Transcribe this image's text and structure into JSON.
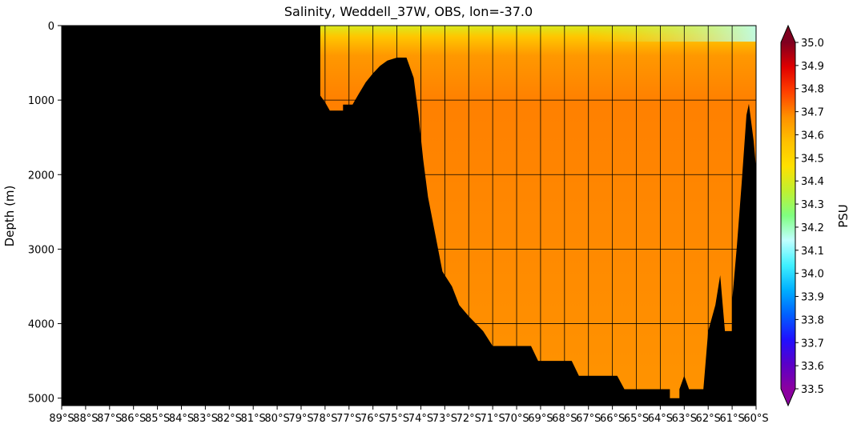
{
  "chart_data": {
    "type": "heatmap",
    "title": "Salinity, Weddell_37W, OBS, lon=-37.0",
    "ylabel": "Depth (m)",
    "xlabel": "",
    "x_range_lat": [
      -89,
      -60
    ],
    "ylim_depth_m": [
      0,
      5100
    ],
    "y_inverted": true,
    "y_ticks": [
      {
        "value": 0,
        "label": "0"
      },
      {
        "value": 1000,
        "label": "1000"
      },
      {
        "value": 2000,
        "label": "2000"
      },
      {
        "value": 3000,
        "label": "3000"
      },
      {
        "value": 4000,
        "label": "4000"
      },
      {
        "value": 5000,
        "label": "5000"
      }
    ],
    "x_ticks": [
      {
        "value": -89,
        "label": "89°S"
      },
      {
        "value": -88,
        "label": "88°S"
      },
      {
        "value": -87,
        "label": "87°S"
      },
      {
        "value": -86,
        "label": "86°S"
      },
      {
        "value": -85,
        "label": "85°S"
      },
      {
        "value": -84,
        "label": "84°S"
      },
      {
        "value": -83,
        "label": "83°S"
      },
      {
        "value": -82,
        "label": "82°S"
      },
      {
        "value": -81,
        "label": "81°S"
      },
      {
        "value": -80,
        "label": "80°S"
      },
      {
        "value": -79,
        "label": "79°S"
      },
      {
        "value": -78,
        "label": "78°S"
      },
      {
        "value": -77,
        "label": "77°S"
      },
      {
        "value": -76,
        "label": "76°S"
      },
      {
        "value": -75,
        "label": "75°S"
      },
      {
        "value": -74,
        "label": "74°S"
      },
      {
        "value": -73,
        "label": "73°S"
      },
      {
        "value": -72,
        "label": "72°S"
      },
      {
        "value": -71,
        "label": "71°S"
      },
      {
        "value": -70,
        "label": "70°S"
      },
      {
        "value": -69,
        "label": "69°S"
      },
      {
        "value": -68,
        "label": "68°S"
      },
      {
        "value": -67,
        "label": "67°S"
      },
      {
        "value": -66,
        "label": "66°S"
      },
      {
        "value": -65,
        "label": "65°S"
      },
      {
        "value": -64,
        "label": "64°S"
      },
      {
        "value": -63,
        "label": "63°S"
      },
      {
        "value": -62,
        "label": "62°S"
      },
      {
        "value": -61,
        "label": "61°S"
      },
      {
        "value": -60,
        "label": "60°S"
      }
    ],
    "grid_lat": [
      -78,
      -77,
      -76,
      -75,
      -74,
      -73,
      -72,
      -71,
      -70,
      -69,
      -68,
      -67,
      -66,
      -65,
      -64,
      -63,
      -62,
      -61,
      -60
    ],
    "grid_depth": [
      1000,
      2000,
      3000,
      4000
    ],
    "colorbar": {
      "label": "PSU",
      "vmin": 33.5,
      "vmax": 35.0,
      "extend": "both",
      "ticks": [
        "33.5",
        "33.6",
        "33.7",
        "33.8",
        "33.9",
        "34.0",
        "34.1",
        "34.2",
        "34.3",
        "34.4",
        "34.5",
        "34.6",
        "34.7",
        "34.8",
        "34.9",
        "35.0"
      ],
      "colors": [
        "#8b00a0",
        "#5a00c8",
        "#2010ff",
        "#0060ff",
        "#00b0ff",
        "#40f0ff",
        "#c0ffff",
        "#80ff80",
        "#c0f030",
        "#ffe000",
        "#ffc000",
        "#ff9000",
        "#ff4000",
        "#e00000",
        "#800020"
      ]
    },
    "land_color": "#000000",
    "salinity_profile": [
      {
        "depth": 0,
        "psu": 34.4
      },
      {
        "depth": 150,
        "psu": 34.55
      },
      {
        "depth": 400,
        "psu": 34.66
      },
      {
        "depth": 1000,
        "psu": 34.7
      },
      {
        "depth": 5100,
        "psu": 34.67
      }
    ],
    "salinity_north_surface_psu": 34.15,
    "bathymetry": [
      {
        "lat": -89,
        "depth": 0
      },
      {
        "lat": -78.2,
        "depth": 0
      },
      {
        "lat": -78.2,
        "depth": 940
      },
      {
        "lat": -78.0,
        "depth": 1030
      },
      {
        "lat": -77.8,
        "depth": 1140
      },
      {
        "lat": -77.25,
        "depth": 1140
      },
      {
        "lat": -77.25,
        "depth": 1060
      },
      {
        "lat": -76.85,
        "depth": 1060
      },
      {
        "lat": -76.6,
        "depth": 920
      },
      {
        "lat": -76.3,
        "depth": 760
      },
      {
        "lat": -76.0,
        "depth": 640
      },
      {
        "lat": -75.7,
        "depth": 540
      },
      {
        "lat": -75.4,
        "depth": 470
      },
      {
        "lat": -75.0,
        "depth": 430
      },
      {
        "lat": -74.6,
        "depth": 430
      },
      {
        "lat": -74.3,
        "depth": 700
      },
      {
        "lat": -74.1,
        "depth": 1200
      },
      {
        "lat": -73.9,
        "depth": 1800
      },
      {
        "lat": -73.7,
        "depth": 2300
      },
      {
        "lat": -73.4,
        "depth": 2800
      },
      {
        "lat": -73.1,
        "depth": 3300
      },
      {
        "lat": -72.7,
        "depth": 3500
      },
      {
        "lat": -72.4,
        "depth": 3750
      },
      {
        "lat": -72.0,
        "depth": 3900
      },
      {
        "lat": -71.4,
        "depth": 4100
      },
      {
        "lat": -71.0,
        "depth": 4300
      },
      {
        "lat": -69.4,
        "depth": 4300
      },
      {
        "lat": -69.1,
        "depth": 4500
      },
      {
        "lat": -67.7,
        "depth": 4500
      },
      {
        "lat": -67.4,
        "depth": 4700
      },
      {
        "lat": -65.8,
        "depth": 4700
      },
      {
        "lat": -65.5,
        "depth": 4880
      },
      {
        "lat": -63.6,
        "depth": 4880
      },
      {
        "lat": -63.6,
        "depth": 5000
      },
      {
        "lat": -63.2,
        "depth": 5000
      },
      {
        "lat": -63.2,
        "depth": 4880
      },
      {
        "lat": -63.0,
        "depth": 4700
      },
      {
        "lat": -62.8,
        "depth": 4880
      },
      {
        "lat": -62.2,
        "depth": 4880
      },
      {
        "lat": -62.0,
        "depth": 4100
      },
      {
        "lat": -61.7,
        "depth": 3750
      },
      {
        "lat": -61.5,
        "depth": 3350
      },
      {
        "lat": -61.3,
        "depth": 4100
      },
      {
        "lat": -61.0,
        "depth": 4100
      },
      {
        "lat": -61.0,
        "depth": 3700
      },
      {
        "lat": -60.8,
        "depth": 2950
      },
      {
        "lat": -60.6,
        "depth": 2100
      },
      {
        "lat": -60.4,
        "depth": 1200
      },
      {
        "lat": -60.3,
        "depth": 1050
      },
      {
        "lat": -60.1,
        "depth": 1550
      },
      {
        "lat": -59.95,
        "depth": 2100
      },
      {
        "lat": -59.8,
        "depth": 2600
      },
      {
        "lat": -59.7,
        "depth": 2950
      },
      {
        "lat": -59.7,
        "depth": 5100
      }
    ]
  }
}
